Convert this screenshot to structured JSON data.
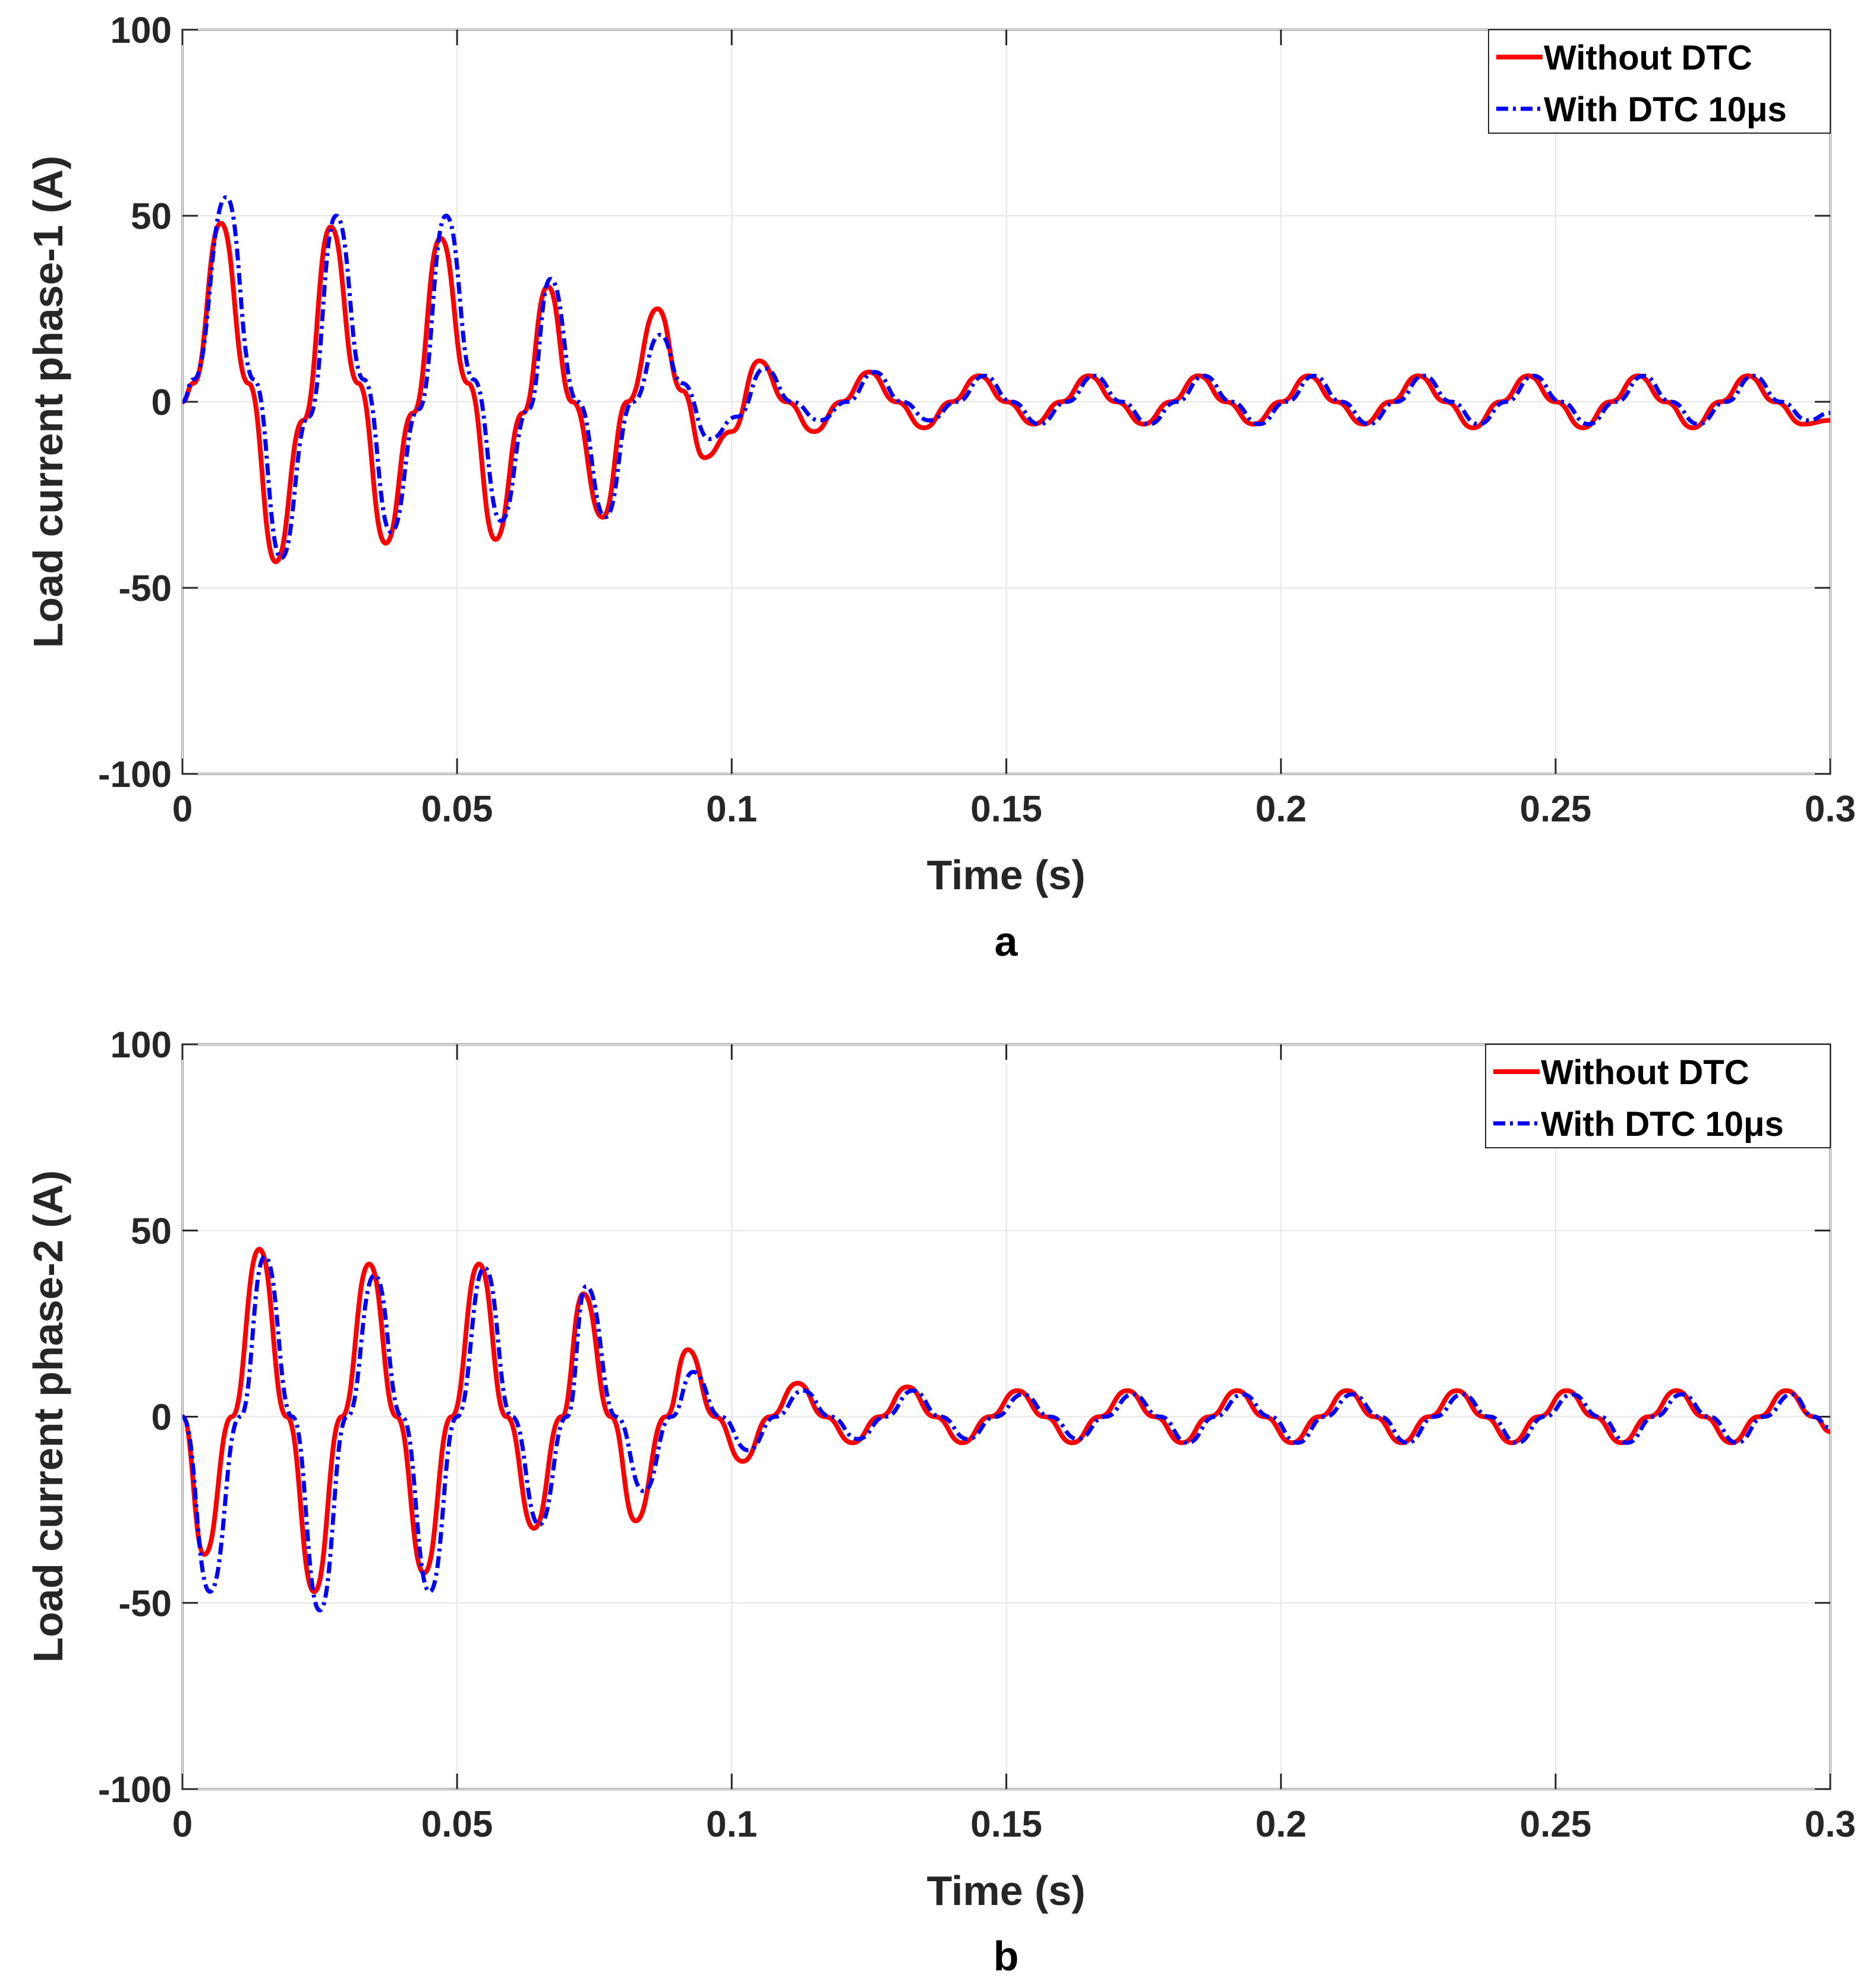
{
  "chart_data": [
    {
      "type": "line",
      "panel_label": "a",
      "xlabel": "Time (s)",
      "ylabel": "Load current phase-1 (A)",
      "xlim": [
        0,
        0.3
      ],
      "ylim": [
        -100,
        100
      ],
      "xticks": [
        0,
        0.05,
        0.1,
        0.15,
        0.2,
        0.25,
        0.3
      ],
      "xtick_labels": [
        "0",
        "0.05",
        "0.1",
        "0.15",
        "0.2",
        "0.25",
        "0.3"
      ],
      "yticks": [
        100,
        50,
        0,
        -50,
        -100
      ],
      "ytick_labels": [
        "100",
        "50",
        "0",
        "-50",
        "-100"
      ],
      "grid": true,
      "legend_position": "top-right",
      "series": [
        {
          "name": "Without DTC",
          "color": "#ff0000",
          "style": "solid",
          "x": [
            0,
            0.002,
            0.007,
            0.012,
            0.017,
            0.022,
            0.027,
            0.032,
            0.037,
            0.042,
            0.047,
            0.052,
            0.057,
            0.062,
            0.0665,
            0.071,
            0.0765,
            0.081,
            0.0865,
            0.091,
            0.095,
            0.1,
            0.105,
            0.11,
            0.115,
            0.12,
            0.125,
            0.13,
            0.135,
            0.14,
            0.145,
            0.15,
            0.155,
            0.16,
            0.165,
            0.17,
            0.175,
            0.18,
            0.185,
            0.19,
            0.195,
            0.2,
            0.205,
            0.21,
            0.215,
            0.22,
            0.225,
            0.23,
            0.235,
            0.24,
            0.245,
            0.25,
            0.255,
            0.26,
            0.265,
            0.27,
            0.275,
            0.28,
            0.285,
            0.29,
            0.295,
            0.3
          ],
          "y": [
            0,
            5,
            48,
            5,
            -43,
            -5,
            47,
            5,
            -38,
            -3,
            44,
            5,
            -37,
            -3,
            31,
            0,
            -31,
            0,
            25,
            3,
            -15,
            -8,
            11,
            0,
            -8,
            0,
            8,
            0,
            -7,
            0,
            7,
            0,
            -6,
            0,
            7,
            0,
            -6,
            0,
            7,
            0,
            -6,
            0,
            7,
            0,
            -6,
            0,
            7,
            0,
            -7,
            0,
            7,
            0,
            -7,
            0,
            7,
            0,
            -7,
            0,
            7,
            0,
            -6,
            -5
          ]
        },
        {
          "name": "With DTC 10μs",
          "color": "#0000ff",
          "style": "dashdot",
          "x": [
            0,
            0.002,
            0.008,
            0.013,
            0.018,
            0.023,
            0.028,
            0.033,
            0.038,
            0.043,
            0.048,
            0.053,
            0.058,
            0.063,
            0.067,
            0.072,
            0.077,
            0.082,
            0.087,
            0.091,
            0.096,
            0.101,
            0.106,
            0.111,
            0.116,
            0.121,
            0.126,
            0.131,
            0.136,
            0.141,
            0.146,
            0.151,
            0.156,
            0.161,
            0.166,
            0.171,
            0.176,
            0.181,
            0.186,
            0.191,
            0.196,
            0.201,
            0.206,
            0.211,
            0.216,
            0.221,
            0.226,
            0.231,
            0.236,
            0.241,
            0.246,
            0.251,
            0.256,
            0.261,
            0.266,
            0.271,
            0.276,
            0.281,
            0.286,
            0.291,
            0.296,
            0.3
          ],
          "y": [
            0,
            6,
            55,
            6,
            -42,
            -4,
            50,
            6,
            -35,
            -2,
            50,
            6,
            -32,
            -2,
            33,
            0,
            -31,
            0,
            18,
            5,
            -10,
            -4,
            9,
            0,
            -5,
            0,
            8,
            0,
            -5,
            0,
            7,
            0,
            -6,
            0,
            7,
            0,
            -6,
            0,
            7,
            0,
            -6,
            0,
            7,
            0,
            -6,
            0,
            7,
            0,
            -6,
            0,
            7,
            0,
            -6,
            0,
            7,
            0,
            -6,
            0,
            7,
            0,
            -5,
            -3
          ]
        }
      ]
    },
    {
      "type": "line",
      "panel_label": "b",
      "xlabel": "Time (s)",
      "ylabel": "Load current phase-2 (A)",
      "xlim": [
        0,
        0.3
      ],
      "ylim": [
        -100,
        100
      ],
      "xticks": [
        0,
        0.05,
        0.1,
        0.15,
        0.2,
        0.25,
        0.3
      ],
      "xtick_labels": [
        "0",
        "0.05",
        "0.1",
        "0.15",
        "0.2",
        "0.25",
        "0.3"
      ],
      "yticks": [
        100,
        50,
        0,
        -50,
        -100
      ],
      "ytick_labels": [
        "100",
        "50",
        "0",
        "-50",
        "-100"
      ],
      "grid": true,
      "legend_position": "top-right",
      "series": [
        {
          "name": "Without DTC",
          "color": "#ff0000",
          "style": "solid",
          "x": [
            0,
            0.004,
            0.009,
            0.014,
            0.019,
            0.024,
            0.029,
            0.034,
            0.039,
            0.044,
            0.049,
            0.054,
            0.059,
            0.064,
            0.069,
            0.073,
            0.078,
            0.0825,
            0.088,
            0.092,
            0.097,
            0.102,
            0.107,
            0.112,
            0.117,
            0.122,
            0.127,
            0.132,
            0.137,
            0.142,
            0.147,
            0.152,
            0.157,
            0.162,
            0.167,
            0.172,
            0.177,
            0.182,
            0.187,
            0.192,
            0.197,
            0.202,
            0.207,
            0.212,
            0.217,
            0.222,
            0.227,
            0.232,
            0.237,
            0.242,
            0.247,
            0.252,
            0.257,
            0.262,
            0.267,
            0.272,
            0.277,
            0.282,
            0.287,
            0.292,
            0.297,
            0.3
          ],
          "y": [
            0,
            -37,
            0,
            45,
            0,
            -47,
            0,
            41,
            0,
            -42,
            0,
            41,
            0,
            -30,
            0,
            33,
            0,
            -28,
            0,
            18,
            0,
            -12,
            0,
            9,
            0,
            -7,
            0,
            8,
            0,
            -7,
            0,
            7,
            0,
            -7,
            0,
            7,
            0,
            -7,
            0,
            7,
            0,
            -7,
            0,
            7,
            0,
            -7,
            0,
            7,
            0,
            -7,
            0,
            7,
            0,
            -7,
            0,
            7,
            0,
            -7,
            0,
            7,
            0,
            -4
          ]
        },
        {
          "name": "With DTC 10μs",
          "color": "#0000ff",
          "style": "dashdot",
          "x": [
            0,
            0.005,
            0.0105,
            0.015,
            0.02,
            0.025,
            0.03,
            0.035,
            0.04,
            0.045,
            0.05,
            0.055,
            0.06,
            0.065,
            0.07,
            0.0735,
            0.079,
            0.084,
            0.089,
            0.093,
            0.098,
            0.103,
            0.108,
            0.113,
            0.118,
            0.123,
            0.128,
            0.133,
            0.138,
            0.143,
            0.148,
            0.153,
            0.158,
            0.163,
            0.168,
            0.173,
            0.178,
            0.183,
            0.188,
            0.193,
            0.198,
            0.203,
            0.208,
            0.213,
            0.218,
            0.223,
            0.228,
            0.233,
            0.238,
            0.243,
            0.248,
            0.253,
            0.258,
            0.263,
            0.268,
            0.273,
            0.278,
            0.283,
            0.288,
            0.293,
            0.297,
            0.3
          ],
          "y": [
            0,
            -47,
            0,
            43,
            0,
            -52,
            0,
            38,
            0,
            -47,
            0,
            40,
            0,
            -29,
            0,
            35,
            0,
            -20,
            0,
            12,
            0,
            -9,
            0,
            7,
            0,
            -6,
            0,
            7,
            0,
            -6,
            0,
            6,
            0,
            -6,
            0,
            6,
            0,
            -7,
            0,
            6,
            0,
            -7,
            0,
            6,
            0,
            -7,
            0,
            6,
            0,
            -7,
            0,
            6,
            0,
            -7,
            0,
            6,
            0,
            -7,
            0,
            6,
            0,
            -3
          ]
        }
      ]
    }
  ]
}
